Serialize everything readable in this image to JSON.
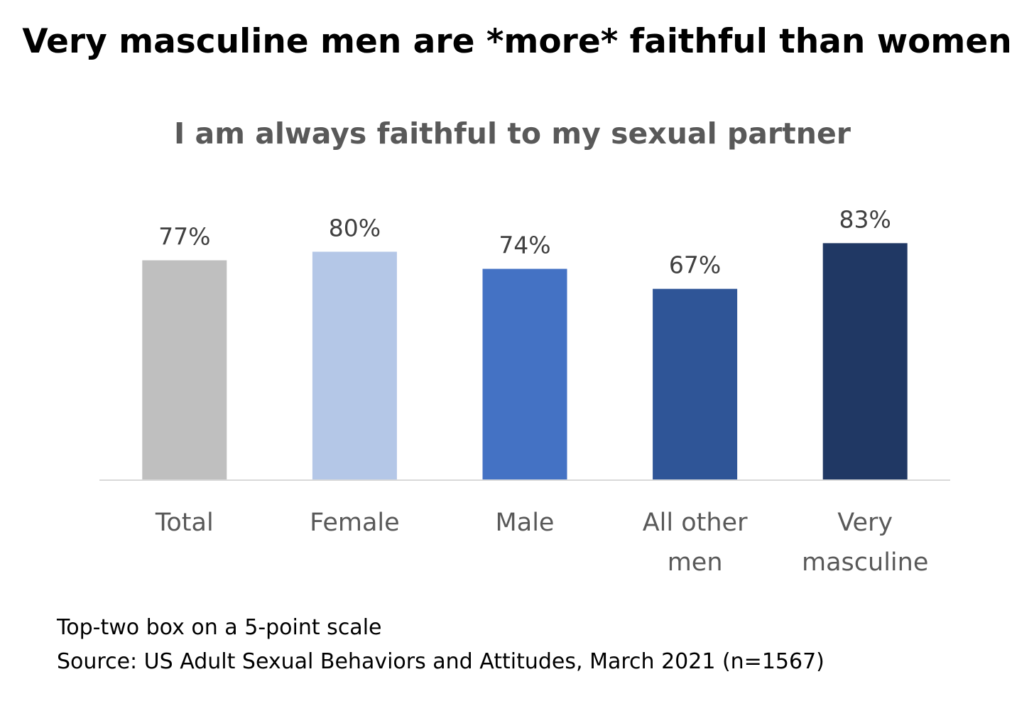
{
  "headline": "Very masculine men are *more* faithful than women",
  "footnotes": {
    "note": "Top-two box on a 5-point scale",
    "source": "Source: US Adult Sexual Behaviors and Attitudes, March 2021 (n=1567)"
  },
  "chart_data": {
    "type": "bar",
    "title": "I am always faithful to my sexual partner",
    "xlabel": "",
    "ylabel": "",
    "categories": [
      [
        "Total"
      ],
      [
        "Female"
      ],
      [
        "Male"
      ],
      [
        "All other",
        "men"
      ],
      [
        "Very",
        "masculine"
      ]
    ],
    "values": [
      77,
      80,
      74,
      67,
      83
    ],
    "data_labels": [
      "77%",
      "80%",
      "74%",
      "67%",
      "83%"
    ],
    "colors": [
      "#bfbfbf",
      "#b4c7e7",
      "#4472c4",
      "#2f5597",
      "#203864"
    ],
    "ylim": [
      0,
      100
    ],
    "grid": false,
    "legend": "none"
  }
}
